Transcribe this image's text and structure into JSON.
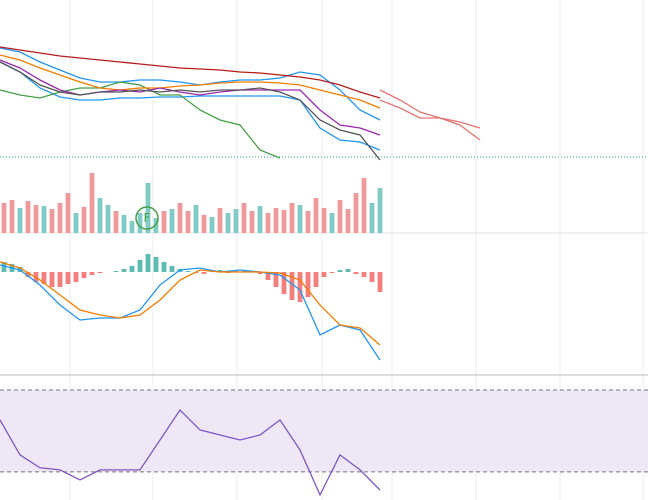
{
  "chart_data": [
    {
      "type": "line",
      "xlim": [
        0,
        648
      ],
      "ylim": [
        0,
        165
      ],
      "xticks": [
        70,
        153,
        237,
        322,
        392,
        476,
        560,
        643
      ],
      "grid": true,
      "x": [
        0,
        20,
        40,
        60,
        80,
        100,
        120,
        140,
        160,
        180,
        200,
        220,
        240,
        260,
        280,
        300,
        320,
        340,
        360,
        380,
        400,
        420,
        440,
        460,
        480
      ],
      "series": [
        {
          "color": "#2196f3",
          "values": [
            117,
            113,
            103,
            95,
            87,
            83,
            83,
            85,
            85,
            83,
            80,
            83,
            85,
            85,
            87,
            93,
            90,
            75,
            55,
            45,
            null,
            null,
            null,
            null,
            null
          ]
        },
        {
          "color": "#2196f3",
          "values": [
            103,
            93,
            77,
            68,
            65,
            65,
            67,
            67,
            68,
            68,
            69,
            69,
            69,
            69,
            69,
            65,
            37,
            25,
            23,
            15,
            null,
            null,
            null,
            null,
            null
          ]
        },
        {
          "color": "#43a047",
          "values": [
            75,
            70,
            67,
            73,
            77,
            77,
            83,
            80,
            70,
            70,
            55,
            45,
            40,
            15,
            7,
            null,
            null,
            null,
            null,
            null,
            null,
            null,
            null,
            null,
            null
          ]
        },
        {
          "color": "#e57373",
          "values": [
            null,
            null,
            null,
            null,
            null,
            null,
            null,
            null,
            null,
            null,
            null,
            null,
            null,
            null,
            null,
            null,
            null,
            null,
            null,
            75,
            65,
            53,
            47,
            43,
            37
          ]
        },
        {
          "color": "#e57373",
          "values": [
            null,
            null,
            null,
            null,
            null,
            null,
            null,
            null,
            null,
            null,
            null,
            null,
            null,
            null,
            null,
            null,
            null,
            null,
            null,
            65,
            57,
            47,
            47,
            40,
            25
          ]
        },
        {
          "color": "#f57c00",
          "values": [
            110,
            105,
            97,
            90,
            83,
            77,
            75,
            77,
            77,
            79,
            80,
            82,
            83,
            83,
            82,
            80,
            75,
            70,
            65,
            57,
            null,
            null,
            null,
            null,
            null
          ]
        },
        {
          "color": "#9c27b0",
          "values": [
            105,
            97,
            85,
            75,
            70,
            73,
            75,
            73,
            77,
            73,
            70,
            73,
            75,
            75,
            75,
            75,
            55,
            40,
            37,
            30,
            null,
            null,
            null,
            null,
            null
          ]
        },
        {
          "color": "#555555",
          "values": [
            103,
            93,
            80,
            73,
            70,
            73,
            73,
            75,
            73,
            75,
            73,
            75,
            75,
            77,
            73,
            65,
            45,
            35,
            30,
            5,
            null,
            null,
            null,
            null,
            null
          ]
        },
        {
          "color": "#b71c1c",
          "values": [
            118,
            115,
            112,
            109,
            107,
            105,
            103,
            101,
            99,
            97,
            96,
            95,
            93,
            92,
            90,
            88,
            85,
            80,
            73,
            67,
            null,
            null,
            null,
            null,
            null
          ]
        }
      ]
    },
    {
      "type": "bar",
      "ylim": [
        0,
        68
      ],
      "annotation": "F",
      "categories": [
        null,
        null,
        null,
        null,
        null,
        null,
        null,
        null,
        null,
        null,
        null,
        null,
        null,
        null,
        null,
        null,
        null,
        null,
        null,
        null,
        null,
        null,
        null,
        null,
        null,
        null,
        null,
        null,
        null,
        null,
        null,
        null,
        null,
        null,
        null,
        null,
        null,
        null,
        null,
        null,
        null,
        null,
        null,
        null,
        null,
        null,
        null,
        null
      ],
      "values": [
        30,
        33,
        25,
        32,
        28,
        27,
        24,
        30,
        40,
        20,
        26,
        60,
        35,
        28,
        22,
        18,
        12,
        20,
        50,
        15,
        22,
        24,
        30,
        22,
        28,
        18,
        16,
        25,
        20,
        24,
        30,
        22,
        27,
        20,
        25,
        23,
        30,
        28,
        22,
        35,
        25,
        20,
        33,
        24,
        40,
        55,
        30,
        45
      ],
      "colors": [
        "#ef9a9a",
        "#ef9a9a",
        "#80cbc4",
        "#ef9a9a",
        "#ef9a9a",
        "#80cbc4",
        "#ef9a9a",
        "#ef9a9a",
        "#ef9a9a",
        "#80cbc4",
        "#ef9a9a",
        "#ef9a9a",
        "#80cbc4",
        "#80cbc4",
        "#ef9a9a",
        "#80cbc4",
        "#80cbc4",
        "#80cbc4",
        "#80cbc4",
        "#80cbc4",
        "#ef9a9a",
        "#80cbc4",
        "#ef9a9a",
        "#ef9a9a",
        "#80cbc4",
        "#ef9a9a",
        "#80cbc4",
        "#ef9a9a",
        "#80cbc4",
        "#80cbc4",
        "#ef9a9a",
        "#ef9a9a",
        "#80cbc4",
        "#ef9a9a",
        "#ef9a9a",
        "#ef9a9a",
        "#ef9a9a",
        "#80cbc4",
        "#ef9a9a",
        "#ef9a9a",
        "#ef9a9a",
        "#80cbc4",
        "#ef9a9a",
        "#ef9a9a",
        "#ef9a9a",
        "#ef9a9a",
        "#80cbc4",
        "#80cbc4"
      ]
    },
    {
      "type": "combo",
      "xlim": [
        0,
        648
      ],
      "ylim": [
        -103,
        39
      ],
      "positive_color": "#26a69a",
      "negative_color": "#ef5350",
      "histogram": [
        10,
        8,
        5,
        -5,
        -10,
        -12,
        -15,
        -15,
        -12,
        -10,
        -6,
        -3,
        -1,
        0,
        1,
        3,
        6,
        12,
        18,
        15,
        10,
        6,
        3,
        1,
        -1,
        -2,
        1,
        2,
        -1,
        2,
        1,
        0,
        -2,
        -8,
        -15,
        -22,
        -28,
        -30,
        -25,
        -15,
        -5,
        -1,
        2,
        3,
        -2,
        -5,
        -10,
        -20
      ],
      "x": [
        0,
        20,
        40,
        60,
        80,
        100,
        120,
        140,
        160,
        180,
        200,
        220,
        240,
        260,
        280,
        300,
        320,
        340,
        360,
        380
      ],
      "series": [
        {
          "color": "#2196f3",
          "values": [
            7,
            2,
            -13,
            -33,
            -48,
            -46,
            -46,
            -38,
            -13,
            2,
            4,
            0,
            2,
            0,
            -3,
            -18,
            -63,
            -53,
            -58,
            -88
          ]
        },
        {
          "color": "#f57c00",
          "values": [
            10,
            4,
            -8,
            -23,
            -38,
            -43,
            -46,
            -43,
            -28,
            -8,
            2,
            0,
            0,
            0,
            -1,
            -8,
            -33,
            -53,
            -56,
            -73
          ]
        }
      ]
    },
    {
      "type": "line",
      "xlim": [
        0,
        648
      ],
      "ylim": [
        16.3,
        77.3
      ],
      "levels": [
        30,
        70
      ],
      "band_color": "#ede7f6",
      "x": [
        0,
        20,
        40,
        60,
        80,
        100,
        120,
        140,
        160,
        180,
        200,
        220,
        240,
        260,
        280,
        300,
        320,
        340,
        360,
        380
      ],
      "series": [
        {
          "color": "#7e57c2",
          "values": [
            55.4,
            38.3,
            32,
            31,
            26.1,
            31,
            31,
            31,
            45.6,
            60.2,
            50.5,
            48,
            45.6,
            48,
            55.4,
            40.7,
            18.8,
            38.3,
            31,
            21.2
          ]
        }
      ]
    }
  ]
}
